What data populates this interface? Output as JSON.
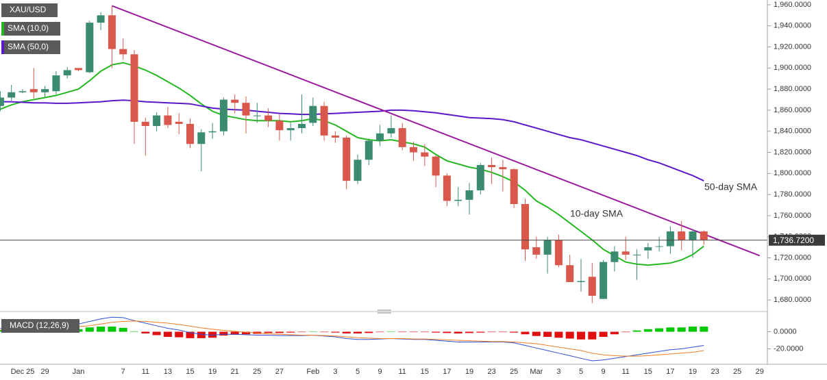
{
  "chart_data": [
    {
      "type": "candlestick",
      "name": "XAU/USD",
      "categories": [
        null,
        null,
        "Dec 25",
        null,
        "29",
        null,
        null,
        "Jan",
        null,
        null,
        null,
        "7",
        null,
        "11",
        null,
        "13",
        null,
        "15",
        null,
        "19",
        null,
        "21",
        null,
        "25",
        null,
        "27",
        null,
        null,
        "Feb",
        null,
        "3",
        null,
        "5",
        null,
        "9",
        null,
        "11",
        null,
        "15",
        null,
        "17",
        null,
        "19",
        null,
        "23",
        null,
        "25",
        null,
        "Mar",
        null,
        "3",
        null,
        "5",
        null,
        "9",
        null,
        "11",
        null,
        "15",
        null,
        "17",
        null,
        "19",
        null,
        "23",
        null,
        "25",
        null,
        "29"
      ],
      "open": [
        1864,
        1872,
        1877,
        1880,
        1877,
        1878,
        1893,
        1900,
        1896,
        1943,
        1950,
        1918,
        1913,
        1849,
        1845,
        1855,
        1849,
        1847,
        1828,
        1839,
        1840,
        1870,
        1867,
        1855,
        1855,
        1850,
        1841,
        1843,
        1848,
        1864,
        1836,
        1834,
        1793,
        1813,
        1831,
        1838,
        1843,
        1825,
        1820,
        1816,
        1798,
        1774,
        1775,
        1784,
        1808,
        1806,
        1804,
        1771,
        1730,
        1723,
        1737,
        1713,
        1697,
        1702,
        1681,
        1716,
        1726,
        1723,
        1727,
        1731,
        1731,
        1745,
        1737,
        1745,
        null,
        null,
        null,
        null,
        null
      ],
      "high": [
        1878,
        1884,
        1880,
        1900,
        1883,
        1897,
        1901,
        1900,
        1945,
        1953,
        1959,
        1928,
        1917,
        1853,
        1858,
        1863,
        1857,
        1852,
        1842,
        1848,
        1872,
        1875,
        1873,
        1867,
        1862,
        1856,
        1848,
        1875,
        1872,
        1868,
        1840,
        1836,
        1818,
        1833,
        1846,
        1855,
        1848,
        1830,
        1828,
        1817,
        1800,
        1787,
        1791,
        1810,
        1815,
        1813,
        1805,
        1776,
        1740,
        1740,
        1742,
        1723,
        1719,
        1715,
        1718,
        1731,
        1740,
        1728,
        1734,
        1740,
        1750,
        1755,
        1747,
        1746,
        null,
        null,
        null,
        null,
        null
      ],
      "low": [
        1859,
        1869,
        1876,
        1871,
        1872,
        1875,
        1890,
        1897,
        1895,
        1936,
        1900,
        1908,
        1828,
        1817,
        1840,
        1843,
        1837,
        1824,
        1802,
        1833,
        1836,
        1857,
        1838,
        1848,
        1844,
        1831,
        1831,
        1838,
        1845,
        1831,
        1829,
        1785,
        1790,
        1808,
        1826,
        1834,
        1822,
        1812,
        1807,
        1787,
        1769,
        1769,
        1761,
        1780,
        1790,
        1783,
        1767,
        1717,
        1719,
        1705,
        1711,
        1697,
        1688,
        1677,
        1681,
        1707,
        1718,
        1699,
        1719,
        1726,
        1724,
        1727,
        1720,
        1732,
        null,
        null,
        null,
        null,
        null
      ],
      "close": [
        1872,
        1877,
        1878,
        1877,
        1880,
        1893,
        1898,
        1898,
        1943,
        1950,
        1918,
        1913,
        1849,
        1845,
        1855,
        1846,
        1847,
        1828,
        1839,
        1840,
        1870,
        1867,
        1855,
        1855,
        1850,
        1841,
        1843,
        1847,
        1864,
        1836,
        1834,
        1793,
        1813,
        1831,
        1838,
        1843,
        1825,
        1820,
        1816,
        1798,
        1774,
        1775,
        1784,
        1808,
        1806,
        1804,
        1771,
        1728,
        1723,
        1737,
        1713,
        1697,
        1698,
        1684,
        1716,
        1726,
        1723,
        1723,
        1730,
        1731,
        1745,
        1737,
        1745,
        1737,
        null,
        null,
        null,
        null,
        null
      ],
      "up_color": "#3b8c6e",
      "down_color": "#d9584b",
      "series": [
        {
          "name": "SMA (10,0)",
          "color": "#22b81e",
          "values": [
            1861,
            1865,
            1868,
            1870,
            1872,
            1874,
            1877,
            1880,
            1888,
            1897,
            1903,
            1905,
            1902,
            1898,
            1893,
            1887,
            1881,
            1874,
            1866,
            1859,
            1855,
            1853,
            1851,
            1850,
            1850,
            1850,
            1849,
            1850,
            1852,
            1850,
            1846,
            1840,
            1834,
            1832,
            1831,
            1832,
            1830,
            1828,
            1825,
            1818,
            1812,
            1809,
            1806,
            1804,
            1801,
            1797,
            1792,
            1784,
            1774,
            1768,
            1761,
            1753,
            1745,
            1737,
            1728,
            1722,
            1716,
            1714,
            1713,
            1714,
            1715,
            1718,
            1723,
            1731,
            null,
            null,
            null,
            null,
            null
          ]
        },
        {
          "name": "SMA (50,0)",
          "color": "#5a18c8",
          "values": [
            1868,
            1868,
            1867.5,
            1867,
            1867,
            1866.5,
            1866.5,
            1867,
            1867.5,
            1868,
            1869,
            1869.5,
            1869,
            1868,
            1867.5,
            1867,
            1866.5,
            1866,
            1864,
            1862,
            1861,
            1860.5,
            1860,
            1859,
            1858,
            1857,
            1856.5,
            1856,
            1856,
            1856.5,
            1857,
            1857.5,
            1858,
            1858.5,
            1859,
            1860,
            1860,
            1859.5,
            1858.5,
            1857.5,
            1856,
            1854.5,
            1853,
            1852.5,
            1852,
            1851,
            1849,
            1846,
            1843,
            1840,
            1837,
            1834,
            1832,
            1829,
            1826,
            1823,
            1820,
            1817,
            1813,
            1810,
            1806,
            1802,
            1798,
            1793,
            null,
            null,
            null,
            null,
            null
          ]
        }
      ],
      "trendline": {
        "color": "#9a1c9e",
        "x": [
          10,
          68
        ],
        "values": [
          1959,
          1722
        ]
      },
      "annotations": [
        {
          "text": "50-day SMA",
          "color": "#5d5dd8"
        },
        {
          "text": "10-day SMA",
          "color": "#27a327"
        }
      ],
      "last_price": {
        "value": 1736.72,
        "label": "1,736.7200"
      },
      "ylim": [
        1671,
        1964.5
      ],
      "yticks": [
        {
          "value": 1680,
          "label": "1,680.0000"
        },
        {
          "value": 1700,
          "label": "1,700.0000"
        },
        {
          "value": 1720,
          "label": "1,720.0000"
        },
        {
          "value": 1740,
          "label": "1,740.0000"
        },
        {
          "value": 1760,
          "label": "1,760.0000"
        },
        {
          "value": 1780,
          "label": "1,780.0000"
        },
        {
          "value": 1800,
          "label": "1,800.0000"
        },
        {
          "value": 1820,
          "label": "1,820.0000"
        },
        {
          "value": 1840,
          "label": "1,840.0000"
        },
        {
          "value": 1860,
          "label": "1,860.0000"
        },
        {
          "value": 1880,
          "label": "1,880.0000"
        },
        {
          "value": 1900,
          "label": "1,900.0000"
        },
        {
          "value": 1920,
          "label": "1,920.0000"
        },
        {
          "value": 1940,
          "label": "1,940.0000"
        },
        {
          "value": 1960,
          "label": "1,960.0000"
        }
      ],
      "grid": false
    },
    {
      "type": "macd",
      "name": "MACD (12,26,9)",
      "histogram": [
        2,
        2,
        2,
        1.5,
        1.5,
        1.5,
        3,
        3,
        5,
        6,
        6,
        4.5,
        0.5,
        -2,
        -4,
        -6,
        -6.5,
        -7.5,
        -7.5,
        -7,
        -4.5,
        -3.5,
        -3,
        -2.5,
        -1.5,
        -1.5,
        -1,
        -0.5,
        0,
        -0.5,
        -1,
        -2,
        -2,
        -1.5,
        -0.5,
        0,
        -0.5,
        -0.5,
        -0.5,
        -1,
        -1.5,
        -2,
        -1.5,
        -1,
        -0.5,
        -0.5,
        -1,
        -3,
        -5,
        -6,
        -7,
        -8,
        -9,
        -9,
        -6,
        -3,
        -0.5,
        1.5,
        3,
        4,
        5,
        5,
        6,
        6,
        null,
        null,
        null,
        null,
        null
      ],
      "up_color": "#00c800",
      "down_color": "#e01010",
      "series": [
        {
          "name": "MACD",
          "color": "#2b4fd6",
          "values": [
            4,
            4.5,
            5,
            5,
            5.5,
            6,
            8,
            9,
            12,
            15,
            17,
            16.5,
            13,
            10,
            7,
            4,
            2,
            -1,
            -3,
            -4,
            -3,
            -3,
            -3.5,
            -4,
            -4,
            -4.5,
            -4.5,
            -4.5,
            -4,
            -5,
            -6,
            -8,
            -9,
            -9,
            -8.5,
            -8,
            -8.5,
            -9,
            -9,
            -10,
            -11,
            -12,
            -12,
            -12,
            -12,
            -12,
            -13,
            -16,
            -19,
            -22,
            -25,
            -28,
            -31,
            -34,
            -33,
            -31,
            -29,
            -27,
            -25,
            -23,
            -21,
            -20,
            -18,
            -16,
            null,
            null,
            null,
            null,
            null
          ]
        },
        {
          "name": "Signal",
          "color": "#f07d22",
          "values": [
            2,
            2.5,
            3,
            3.5,
            4,
            4.5,
            5,
            6,
            7,
            9,
            11,
            12,
            12.5,
            12,
            11,
            10,
            8.5,
            6.5,
            4.5,
            3,
            1.5,
            0.5,
            -0.5,
            -1.5,
            -2.5,
            -3,
            -3.5,
            -4,
            -4,
            -4.5,
            -5,
            -6,
            -7,
            -7.5,
            -8,
            -8,
            -8,
            -8.5,
            -8.5,
            -9,
            -9.5,
            -10,
            -10.5,
            -11,
            -11.5,
            -11.5,
            -12,
            -13,
            -14,
            -16,
            -18,
            -20,
            -22,
            -25,
            -27,
            -28,
            -28.5,
            -28.5,
            -28,
            -27,
            -26,
            -25,
            -24,
            -22,
            null,
            null,
            null,
            null,
            null
          ]
        }
      ],
      "ylim": [
        -38,
        19.6
      ],
      "yticks": [
        {
          "value": 0,
          "label": "0.0000"
        },
        {
          "value": -20,
          "label": "-20.0000"
        }
      ]
    }
  ]
}
